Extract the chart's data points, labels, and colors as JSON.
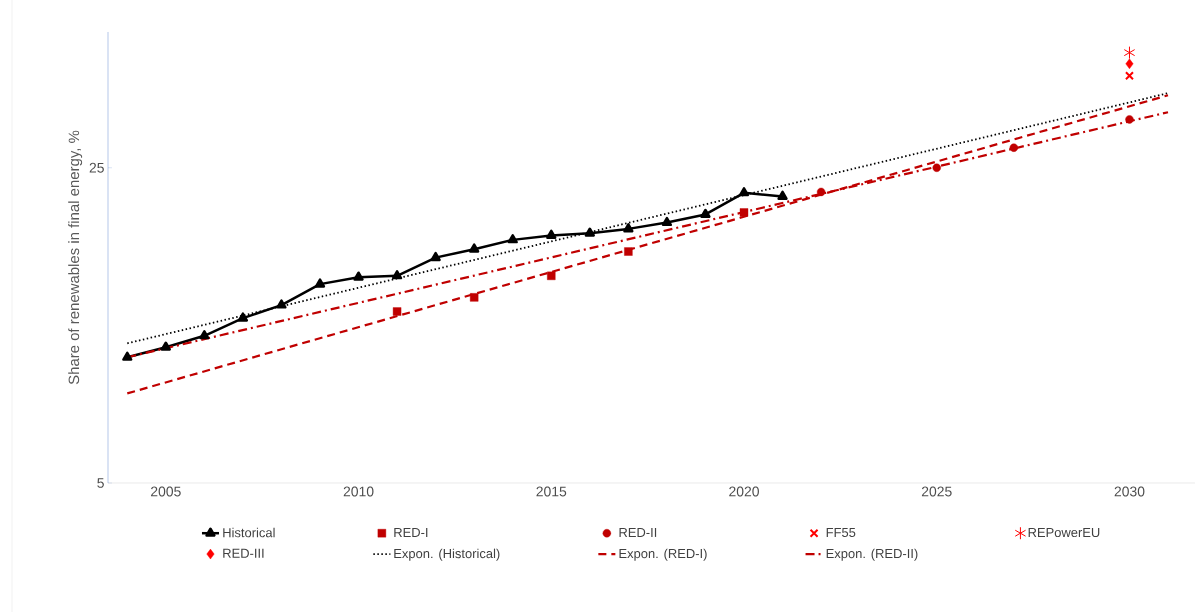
{
  "chart_data": {
    "type": "line",
    "ylabel": "Share of renewables in final energy, %",
    "log": "y",
    "legend": "bottom",
    "xlim": [
      2003.5,
      2031.7
    ],
    "ylim": [
      5,
      50
    ],
    "xticks": [
      2005,
      2010,
      2015,
      2020,
      2025,
      2030
    ],
    "yticks": [
      5,
      25
    ],
    "series": [
      {
        "name": "Historical",
        "color": "#000000",
        "marker": "triangle",
        "line_style": "solid",
        "x": [
          2004,
          2005,
          2006,
          2007,
          2008,
          2009,
          2010,
          2011,
          2012,
          2013,
          2014,
          2015,
          2016,
          2017,
          2018,
          2019,
          2020,
          2021
        ],
        "values": [
          9.5,
          10.0,
          10.6,
          11.6,
          12.4,
          13.8,
          14.3,
          14.4,
          15.8,
          16.5,
          17.3,
          17.7,
          17.9,
          18.3,
          18.9,
          19.7,
          22.0,
          21.6
        ]
      },
      {
        "name": "RED-I",
        "type": "scatter",
        "color": "#c00000",
        "marker": "square",
        "x": [
          2011,
          2013,
          2015,
          2017,
          2020
        ],
        "values": [
          12.0,
          12.9,
          14.4,
          16.3,
          19.9
        ]
      },
      {
        "name": "RED-II",
        "type": "scatter",
        "color": "#c00000",
        "marker": "circle",
        "x": [
          2022,
          2025,
          2027,
          2030
        ],
        "values": [
          22.1,
          25.0,
          27.7,
          32.0
        ]
      },
      {
        "name": "FF55",
        "type": "scatter",
        "color": "#ff0000",
        "marker": "cross",
        "x": [
          2030
        ],
        "values": [
          40
        ]
      },
      {
        "name": "REPowerEU",
        "type": "scatter",
        "color": "#ff0000",
        "x": [
          2030
        ],
        "values": [
          45
        ]
      },
      {
        "name": "RED-III",
        "type": "scatter",
        "color": "#ff0000",
        "marker": "diamond",
        "x": [
          2030
        ],
        "values": [
          42.5
        ]
      },
      {
        "name": "Expon. (Historical)",
        "color": "#000000",
        "marker": "none",
        "line_style": "dotted",
        "x": [
          2004,
          2031
        ],
        "values": [
          10.2,
          36.6
        ]
      },
      {
        "name": "Expon. (RED-I)",
        "color": "#c00000",
        "marker": "none",
        "line_style": "dashed",
        "x": [
          2004,
          2031
        ],
        "values": [
          7.9,
          36.2
        ]
      },
      {
        "name": "Expon. (RED-II)",
        "color": "#c00000",
        "marker": "none",
        "line_style": "dashdot",
        "x": [
          2004,
          2031
        ],
        "values": [
          9.5,
          33.2
        ]
      }
    ]
  }
}
